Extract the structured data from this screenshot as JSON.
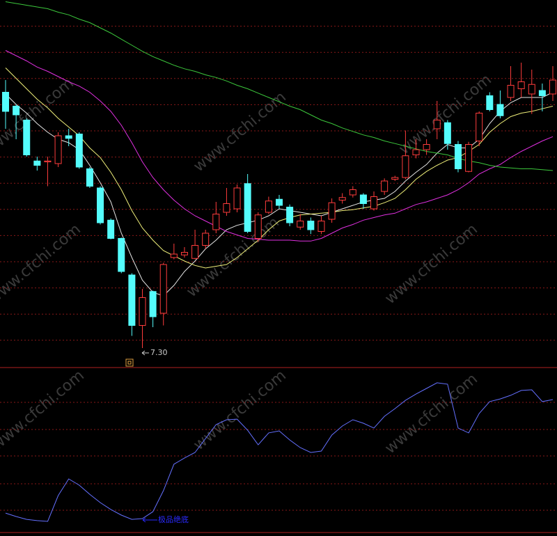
{
  "watermark": "www.cfchi.com",
  "chart_data": [
    {
      "type": "candlestick",
      "ylim": [
        7.1,
        11.3
      ],
      "up_color": "#ff3c3c",
      "down_color": "#54fcfc",
      "open": [
        10.24,
        10.08,
        9.92,
        9.45,
        9.44,
        9.42,
        9.74,
        9.76,
        9.36,
        9.14,
        8.77,
        8.56,
        8.14,
        7.56,
        7.95,
        7.7,
        8.34,
        8.37,
        8.33,
        8.48,
        8.66,
        8.86,
        8.9,
        9.19,
        8.56,
        8.86,
        9.01,
        8.92,
        8.69,
        8.76,
        8.64,
        8.78,
        9.0,
        9.06,
        9.06,
        8.9,
        9.1,
        9.24,
        9.26,
        9.52,
        9.58,
        9.82,
        9.89,
        9.64,
        9.33,
        9.68,
        10.2,
        10.1,
        10.18,
        10.28,
        10.22,
        10.26,
        10.22
      ],
      "high": [
        10.38,
        10.1,
        9.94,
        9.5,
        9.5,
        9.78,
        9.82,
        9.78,
        9.38,
        9.16,
        8.79,
        8.57,
        8.16,
        7.98,
        7.96,
        8.28,
        8.5,
        8.46,
        8.66,
        8.66,
        8.98,
        9.14,
        9.18,
        9.3,
        8.86,
        9.04,
        9.06,
        8.95,
        8.84,
        8.8,
        8.82,
        9.02,
        9.08,
        9.16,
        9.08,
        9.1,
        9.25,
        9.28,
        9.8,
        9.7,
        9.7,
        10.14,
        9.92,
        9.68,
        9.67,
        10.02,
        10.24,
        10.26,
        10.54,
        10.58,
        10.5,
        10.34,
        10.54
      ],
      "low": [
        9.82,
        9.7,
        9.5,
        9.34,
        9.16,
        9.38,
        9.62,
        9.36,
        9.14,
        8.72,
        8.55,
        8.16,
        7.44,
        7.3,
        7.54,
        7.56,
        8.32,
        8.34,
        8.32,
        8.44,
        8.62,
        8.82,
        8.86,
        8.62,
        8.52,
        8.84,
        8.9,
        8.7,
        8.66,
        8.61,
        8.61,
        8.74,
        8.96,
        9.03,
        8.9,
        8.88,
        9.06,
        9.22,
        9.24,
        9.48,
        9.52,
        9.7,
        9.58,
        9.32,
        9.32,
        9.62,
        10.02,
        9.94,
        10.14,
        10.18,
        9.99,
        10.02,
        10.14
      ],
      "close": [
        10.02,
        9.98,
        9.52,
        9.4,
        9.45,
        9.74,
        9.71,
        9.38,
        9.16,
        8.74,
        8.56,
        8.18,
        7.56,
        7.88,
        7.66,
        8.26,
        8.38,
        8.4,
        8.48,
        8.62,
        8.84,
        8.96,
        9.14,
        8.64,
        8.83,
        8.99,
        8.94,
        8.74,
        8.76,
        8.66,
        8.76,
        8.97,
        9.03,
        9.12,
        8.96,
        9.04,
        9.22,
        9.26,
        9.51,
        9.58,
        9.64,
        9.92,
        9.65,
        9.36,
        9.64,
        10.0,
        10.04,
        9.97,
        10.32,
        10.36,
        10.33,
        10.2,
        10.38
      ],
      "series": [
        {
          "color": "#e6e6e6",
          "values": [
            10.22,
            10.1,
            10.0,
            9.88,
            9.78,
            9.7,
            9.66,
            9.58,
            9.4,
            9.2,
            8.98,
            8.62,
            8.34,
            8.08,
            7.94,
            7.9,
            8.02,
            8.18,
            8.3,
            8.44,
            8.54,
            8.66,
            8.71,
            8.74,
            8.77,
            8.82,
            8.9,
            8.88,
            8.86,
            8.84,
            8.82,
            8.86,
            8.9,
            8.94,
            8.98,
            9.0,
            9.02,
            9.1,
            9.22,
            9.32,
            9.41,
            9.54,
            9.64,
            9.6,
            9.6,
            9.7,
            9.88,
            10.02,
            10.12,
            10.18,
            10.18,
            10.18,
            10.24
          ]
        },
        {
          "color": "#f0f07a",
          "values": [
            10.52,
            10.4,
            10.28,
            10.16,
            10.06,
            9.94,
            9.84,
            9.74,
            9.6,
            9.49,
            9.32,
            9.12,
            8.88,
            8.68,
            8.54,
            8.42,
            8.36,
            8.3,
            8.25,
            8.22,
            8.24,
            8.26,
            8.34,
            8.44,
            8.54,
            8.66,
            8.76,
            8.8,
            8.83,
            8.84,
            8.85,
            8.86,
            8.88,
            8.89,
            8.91,
            8.93,
            8.97,
            9.02,
            9.12,
            9.24,
            9.33,
            9.4,
            9.46,
            9.49,
            9.56,
            9.64,
            9.78,
            9.88,
            9.96,
            10.0,
            10.02,
            10.05,
            10.08
          ]
        },
        {
          "color": "#e030e0",
          "values": [
            10.72,
            10.66,
            10.6,
            10.53,
            10.48,
            10.42,
            10.36,
            10.31,
            10.24,
            10.14,
            10.02,
            9.86,
            9.66,
            9.44,
            9.26,
            9.12,
            9.0,
            8.9,
            8.82,
            8.76,
            8.7,
            8.64,
            8.6,
            8.56,
            8.55,
            8.54,
            8.54,
            8.54,
            8.53,
            8.53,
            8.56,
            8.62,
            8.68,
            8.72,
            8.77,
            8.8,
            8.83,
            8.85,
            8.9,
            8.95,
            8.98,
            9.02,
            9.06,
            9.12,
            9.2,
            9.3,
            9.36,
            9.41,
            9.49,
            9.56,
            9.62,
            9.68,
            9.73
          ]
        },
        {
          "color": "#3cc83c",
          "values": [
            11.28,
            11.26,
            11.24,
            11.22,
            11.2,
            11.16,
            11.13,
            11.08,
            11.04,
            10.98,
            10.92,
            10.85,
            10.78,
            10.71,
            10.65,
            10.6,
            10.55,
            10.51,
            10.48,
            10.44,
            10.41,
            10.37,
            10.32,
            10.28,
            10.23,
            10.18,
            10.13,
            10.08,
            10.04,
            9.98,
            9.92,
            9.88,
            9.83,
            9.79,
            9.75,
            9.72,
            9.68,
            9.65,
            9.62,
            9.59,
            9.56,
            9.54,
            9.52,
            9.48,
            9.45,
            9.43,
            9.4,
            9.38,
            9.37,
            9.36,
            9.36,
            9.35,
            9.34
          ]
        }
      ],
      "annotations": [
        {
          "text": "7.30"
        }
      ]
    },
    {
      "type": "line",
      "ylim": [
        0,
        100
      ],
      "series": [
        {
          "color": "#6470ff",
          "values": [
            12.4,
            10.2,
            8.4,
            7.6,
            7.1,
            23.6,
            34.2,
            30.2,
            24.4,
            19.1,
            14.7,
            11.1,
            8.4,
            8.9,
            13.3,
            26.7,
            43.6,
            47.6,
            51.1,
            60.0,
            68.9,
            72.0,
            72.4,
            65.3,
            56.0,
            63.6,
            64.9,
            59.1,
            54.2,
            51.1,
            52.0,
            62.2,
            68.0,
            72.0,
            69.8,
            66.7,
            74.2,
            79.1,
            84.4,
            88.4,
            92.0,
            95.6,
            94.7,
            66.7,
            63.6,
            76.0,
            83.6,
            85.3,
            87.6,
            90.7,
            91.1,
            83.6,
            84.9
          ]
        }
      ],
      "annotations": [
        {
          "text": "极品绝底"
        }
      ]
    }
  ]
}
